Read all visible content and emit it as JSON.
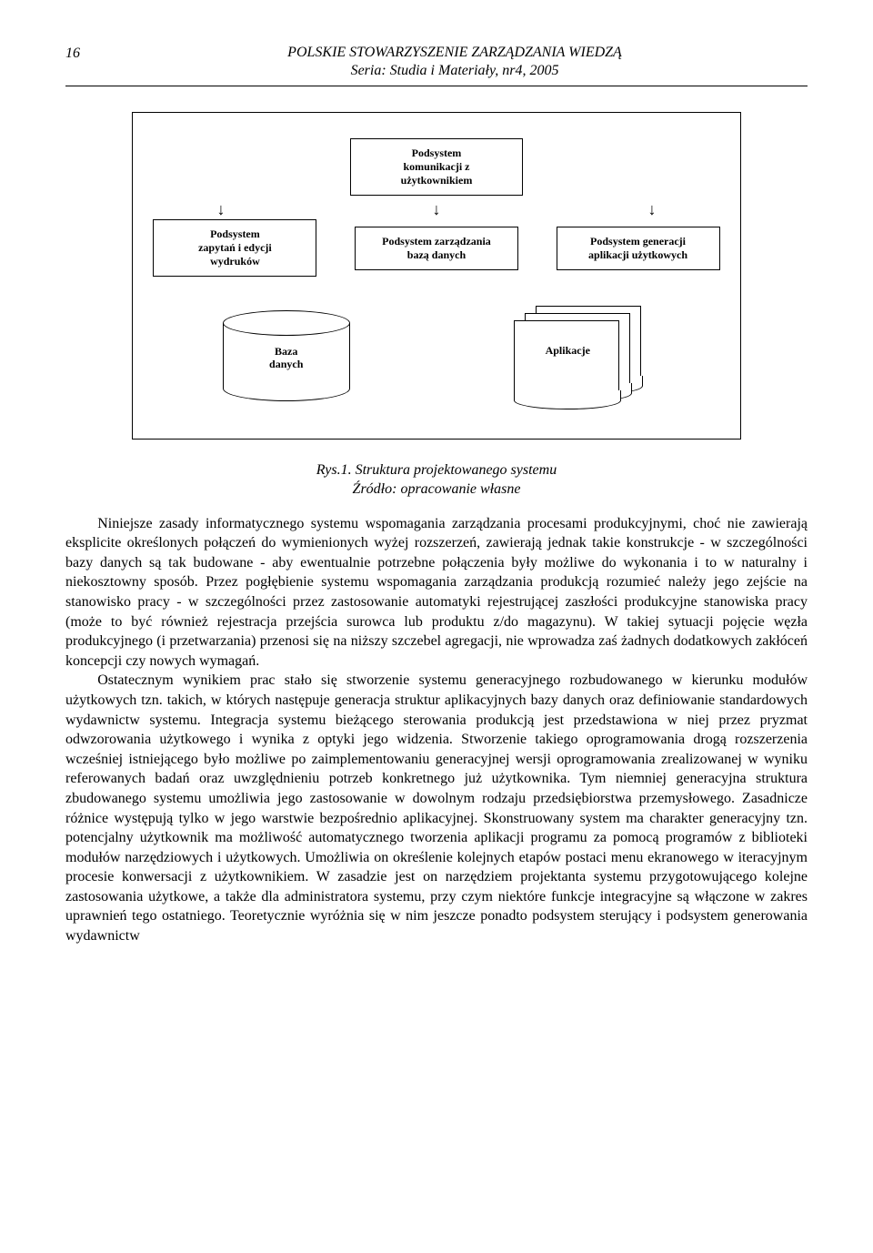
{
  "header": {
    "page_number": "16",
    "line1": "POLSKIE STOWARZYSZENIE ZARZĄDZANIA WIEDZĄ",
    "line2": "Seria: Studia i Materiały, nr4, 2005"
  },
  "diagram": {
    "type": "flowchart",
    "background_color": "#ffffff",
    "border_color": "#000000",
    "font_family": "Times New Roman",
    "box_fontsize_pt": 9,
    "box_fontweight": "bold",
    "nodes": {
      "top": {
        "label_l1": "Podsystem",
        "label_l2": "komunikacji z",
        "label_l3": "użytkownikiem"
      },
      "left": {
        "label_l1": "Podsystem",
        "label_l2": "zapytań i edycji",
        "label_l3": "wydruków"
      },
      "center": {
        "label_l1": "Podsystem zarządzania",
        "label_l2": "bazą danych"
      },
      "right": {
        "label_l1": "Podsystem generacji",
        "label_l2": "aplikacji użytkowych"
      },
      "db": {
        "shape": "cylinder",
        "label_l1": "Baza",
        "label_l2": "danych"
      },
      "apps": {
        "shape": "document-stack",
        "count": 3,
        "label": "Aplikacje"
      }
    },
    "arrow_glyph_down": "↓",
    "edges": [
      {
        "from": "top",
        "to": "left",
        "style": "arrow-down"
      },
      {
        "from": "top",
        "to": "center",
        "style": "arrow-down"
      },
      {
        "from": "top",
        "to": "right",
        "style": "arrow-down"
      }
    ]
  },
  "caption": {
    "line1": "Rys.1. Struktura projektowanego systemu",
    "line2": "Źródło: opracowanie własne"
  },
  "paragraphs": {
    "p1": "Niniejsze zasady informatycznego systemu wspomagania zarządzania procesami produkcyjnymi, choć nie zawierają eksplicite określonych połączeń do wymienionych wyżej rozszerzeń, zawierają jednak takie konstrukcje - w szczególności bazy danych są tak budowane - aby ewentualnie potrzebne połączenia były możliwe do wykonania i to w naturalny i niekosztowny sposób. Przez pogłębienie systemu wspomagania zarządzania produkcją rozumieć należy jego zejście na stanowisko pracy - w szczególności przez zastosowanie automatyki rejestrującej zaszłości produkcyjne stanowiska pracy (może to być również rejestracja przejścia surowca lub produktu z/do magazynu). W takiej sytuacji pojęcie węzła produkcyjnego (i przetwarzania) przenosi się na niższy szczebel agregacji, nie wprowadza zaś żadnych dodatkowych zakłóceń koncepcji czy nowych wymagań.",
    "p2": "Ostatecznym wynikiem prac stało się stworzenie systemu generacyjnego rozbudowanego w kierunku modułów użytkowych tzn. takich, w których następuje generacja struktur aplikacyjnych bazy danych oraz definiowanie standardowych wydawnictw systemu. Integracja systemu bieżącego sterowania produkcją jest przedstawiona w niej przez pryzmat odwzorowania użytkowego i wynika z optyki jego widzenia. Stworzenie takiego oprogramowania drogą rozszerzenia wcześniej istniejącego było możliwe po zaimplementowaniu generacyjnej wersji oprogramowania zrealizowanej w wyniku referowanych badań oraz uwzględnieniu potrzeb konkretnego już użytkownika. Tym niemniej generacyjna struktura zbudowanego systemu umożliwia jego zastosowanie w dowolnym rodzaju przedsiębiorstwa przemysłowego. Zasadnicze różnice występują tylko w jego warstwie bezpośrednio aplikacyjnej. Skonstruowany system ma charakter generacyjny tzn. potencjalny użytkownik ma możliwość automatycznego tworzenia aplikacji programu za pomocą programów z biblioteki modułów narzędziowych i użytkowych. Umożliwia on określenie kolejnych etapów postaci menu ekranowego w iteracyjnym procesie konwersacji z użytkownikiem. W zasadzie jest on narzędziem projektanta systemu przygotowującego kolejne zastosowania użytkowe, a także dla administratora systemu, przy czym niektóre funkcje integracyjne są włączone w zakres uprawnień tego ostatniego. Teoretycznie wyróżnia się w nim jeszcze ponadto podsystem sterujący i podsystem generowania wydawnictw"
  }
}
